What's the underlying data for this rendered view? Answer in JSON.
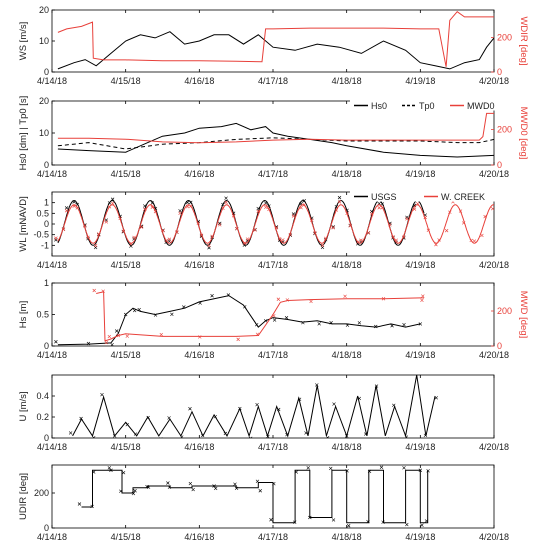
{
  "chart_data": [
    {
      "type": "line",
      "ylabel": "WS [m/s]",
      "ylabel_right": "WDIR [deg]",
      "ylim": [
        0,
        20
      ],
      "ylim_right": [
        0,
        360
      ],
      "yticks": [
        0,
        10,
        20
      ],
      "yticks_right": [
        0,
        200
      ],
      "xticks": [
        "4/14/18",
        "4/15/18",
        "4/16/18",
        "4/17/18",
        "4/18/18",
        "4/19/18",
        "4/20/18"
      ],
      "series": [
        {
          "axis": "left",
          "color": "#000000",
          "style": "solid",
          "x": [
            0.08,
            0.3,
            0.45,
            0.6,
            0.8,
            1.0,
            1.2,
            1.4,
            1.6,
            1.8,
            2.0,
            2.2,
            2.4,
            2.6,
            2.8,
            3.0,
            3.3,
            3.6,
            3.9,
            4.2,
            4.5,
            4.8,
            5.0,
            5.2,
            5.4,
            5.6,
            5.8,
            5.9,
            6.0
          ],
          "y": [
            1,
            3,
            4,
            2,
            6,
            10,
            12,
            11,
            13,
            9,
            10,
            12,
            12,
            9,
            12,
            8,
            7,
            9,
            8,
            6,
            10,
            7,
            3,
            2,
            1,
            3,
            4,
            8,
            11
          ]
        },
        {
          "axis": "right",
          "color": "#e8403a",
          "style": "solid",
          "x": [
            0.08,
            0.2,
            0.4,
            0.55,
            0.56,
            0.7,
            1.0,
            1.5,
            2.0,
            2.5,
            2.85,
            2.9,
            3.0,
            3.5,
            4.0,
            4.5,
            5.0,
            5.25,
            5.35,
            5.4,
            5.5,
            5.6,
            6.0
          ],
          "y": [
            230,
            250,
            265,
            290,
            80,
            70,
            70,
            65,
            65,
            62,
            60,
            250,
            250,
            255,
            255,
            255,
            250,
            250,
            30,
            300,
            350,
            320,
            320
          ]
        }
      ]
    },
    {
      "type": "line",
      "ylabel": "Hs0 [dm] | Tp0 [s]",
      "ylabel_right": "MWD0 [deg]",
      "ylim": [
        0,
        20
      ],
      "ylim_right": [
        0,
        360
      ],
      "yticks": [
        0,
        10,
        20
      ],
      "yticks_right": [
        0,
        200
      ],
      "legend": [
        "Hs0",
        "Tp0",
        "MWD0"
      ],
      "xticks": [
        "4/14/18",
        "4/15/18",
        "4/16/18",
        "4/17/18",
        "4/18/18",
        "4/19/18",
        "4/20/18"
      ],
      "series": [
        {
          "name": "Hs0",
          "axis": "left",
          "color": "#000000",
          "style": "solid",
          "x": [
            0.08,
            0.5,
            1.0,
            1.3,
            1.5,
            1.8,
            2.0,
            2.3,
            2.5,
            2.7,
            2.9,
            3.0,
            3.2,
            3.5,
            3.8,
            4.0,
            4.5,
            5.0,
            5.5,
            6.0
          ],
          "y": [
            5,
            4.5,
            4,
            7,
            9,
            10,
            11.5,
            12,
            13,
            11,
            12,
            10,
            9,
            8,
            7,
            6,
            4,
            3,
            2.5,
            3
          ]
        },
        {
          "name": "Tp0",
          "axis": "left",
          "color": "#000000",
          "style": "dashed",
          "x": [
            0.08,
            0.5,
            1.0,
            1.5,
            2.0,
            2.5,
            3.0,
            3.5,
            4.0,
            4.5,
            5.0,
            5.5,
            5.8,
            6.0
          ],
          "y": [
            6,
            7,
            5,
            6.5,
            7,
            8,
            8.5,
            8,
            7.5,
            7.5,
            7.5,
            7,
            7,
            8
          ]
        },
        {
          "name": "MWD0",
          "axis": "right",
          "color": "#e8403a",
          "style": "solid",
          "x": [
            0.08,
            0.5,
            1.0,
            1.5,
            2.0,
            2.5,
            3.0,
            3.5,
            4.0,
            4.5,
            5.0,
            5.5,
            5.8,
            5.85,
            5.9,
            6.0
          ],
          "y": [
            150,
            150,
            145,
            130,
            125,
            130,
            140,
            145,
            140,
            140,
            140,
            140,
            140,
            160,
            290,
            290
          ]
        }
      ]
    },
    {
      "type": "line",
      "ylabel": "WL [mNAVD]",
      "ylim": [
        -1.5,
        1.5
      ],
      "yticks": [
        -1,
        -0.5,
        0,
        0.5,
        1
      ],
      "legend": [
        "USGS",
        "W. CREEK"
      ],
      "xticks": [
        "4/14/18",
        "4/15/18",
        "4/16/18",
        "4/17/18",
        "4/18/18",
        "4/19/18",
        "4/20/18"
      ],
      "series": [
        {
          "name": "USGS",
          "color": "#000000",
          "style": "solid",
          "kind": "tide",
          "amp": 1.05,
          "offset": 0.05,
          "period": 0.5175,
          "phase": 0.3,
          "xrange": [
            0.08,
            5.05
          ]
        },
        {
          "name": "W. CREEK",
          "color": "#e8403a",
          "style": "solid",
          "kind": "tide",
          "amp": 0.9,
          "offset": 0.0,
          "period": 0.5175,
          "phase": 0.3,
          "xrange": [
            0.08,
            6.0
          ]
        }
      ]
    },
    {
      "type": "line",
      "ylabel": "Hs [m]",
      "ylabel_right": "MWD [deg]",
      "ylim": [
        0,
        1
      ],
      "ylim_right": [
        0,
        360
      ],
      "yticks": [
        0,
        0.5,
        1
      ],
      "yticks_right": [
        0,
        200
      ],
      "xticks": [
        "4/14/18",
        "4/15/18",
        "4/16/18",
        "4/17/18",
        "4/18/18",
        "4/19/18",
        "4/20/18"
      ],
      "series": [
        {
          "axis": "left",
          "color": "#000000",
          "style": "solid",
          "x": [
            0.08,
            0.5,
            0.8,
            0.9,
            1.0,
            1.1,
            1.2,
            1.4,
            1.6,
            1.8,
            2.0,
            2.2,
            2.4,
            2.6,
            2.8,
            2.9,
            3.0,
            3.2,
            3.4,
            3.6,
            3.8,
            4.0,
            4.2,
            4.4,
            4.6,
            4.8,
            5.0
          ],
          "y": [
            0.02,
            0.03,
            0.05,
            0.2,
            0.5,
            0.6,
            0.55,
            0.5,
            0.55,
            0.6,
            0.7,
            0.75,
            0.8,
            0.65,
            0.3,
            0.4,
            0.45,
            0.42,
            0.38,
            0.4,
            0.35,
            0.35,
            0.32,
            0.3,
            0.35,
            0.3,
            0.35
          ]
        },
        {
          "axis": "right",
          "color": "#e8403a",
          "style": "solid",
          "x": [
            0.6,
            0.7,
            0.72,
            0.8,
            0.9,
            1.0,
            1.5,
            2.0,
            2.5,
            2.8,
            3.0,
            3.1,
            3.2,
            3.5,
            4.0,
            4.5,
            5.0,
            5.05
          ],
          "y": [
            300,
            310,
            30,
            40,
            60,
            70,
            55,
            55,
            55,
            60,
            180,
            250,
            260,
            265,
            270,
            270,
            275,
            275
          ]
        }
      ]
    },
    {
      "type": "line",
      "ylabel": "U [m/s]",
      "ylim": [
        0,
        0.6
      ],
      "yticks": [
        0,
        0.2,
        0.4
      ],
      "xticks": [
        "4/14/18",
        "4/15/18",
        "4/16/18",
        "4/17/18",
        "4/18/18",
        "4/19/18",
        "4/20/18"
      ],
      "series": [
        {
          "color": "#000000",
          "style": "solid",
          "kind": "spiky",
          "x": [
            0.4,
            0.7,
            1.0,
            1.3,
            1.6,
            1.9,
            2.2,
            2.55,
            2.8,
            3.05,
            3.35,
            3.6,
            3.85,
            4.15,
            4.4,
            4.65,
            4.95,
            5.2
          ],
          "y": [
            0.18,
            0.39,
            0.15,
            0.2,
            0.18,
            0.25,
            0.22,
            0.28,
            0.3,
            0.3,
            0.38,
            0.5,
            0.3,
            0.4,
            0.5,
            0.3,
            0.6,
            0.4
          ]
        }
      ]
    },
    {
      "type": "line",
      "ylabel": "UDIR [deg]",
      "ylim": [
        0,
        360
      ],
      "yticks": [
        0,
        200
      ],
      "xticks": [
        "4/14/18",
        "4/15/18",
        "4/16/18",
        "4/17/18",
        "4/18/18",
        "4/19/18",
        "4/20/18"
      ],
      "series": [
        {
          "color": "#000000",
          "style": "solid",
          "kind": "steps",
          "x": [
            0.4,
            0.55,
            0.8,
            0.95,
            1.1,
            1.3,
            1.6,
            1.9,
            2.2,
            2.5,
            2.8,
            3.0,
            3.3,
            3.5,
            3.8,
            4.0,
            4.3,
            4.5,
            4.8,
            5.0,
            5.1
          ],
          "y": [
            120,
            330,
            330,
            200,
            230,
            240,
            230,
            240,
            240,
            230,
            260,
            30,
            330,
            60,
            330,
            30,
            330,
            30,
            330,
            30,
            330
          ]
        }
      ]
    }
  ]
}
